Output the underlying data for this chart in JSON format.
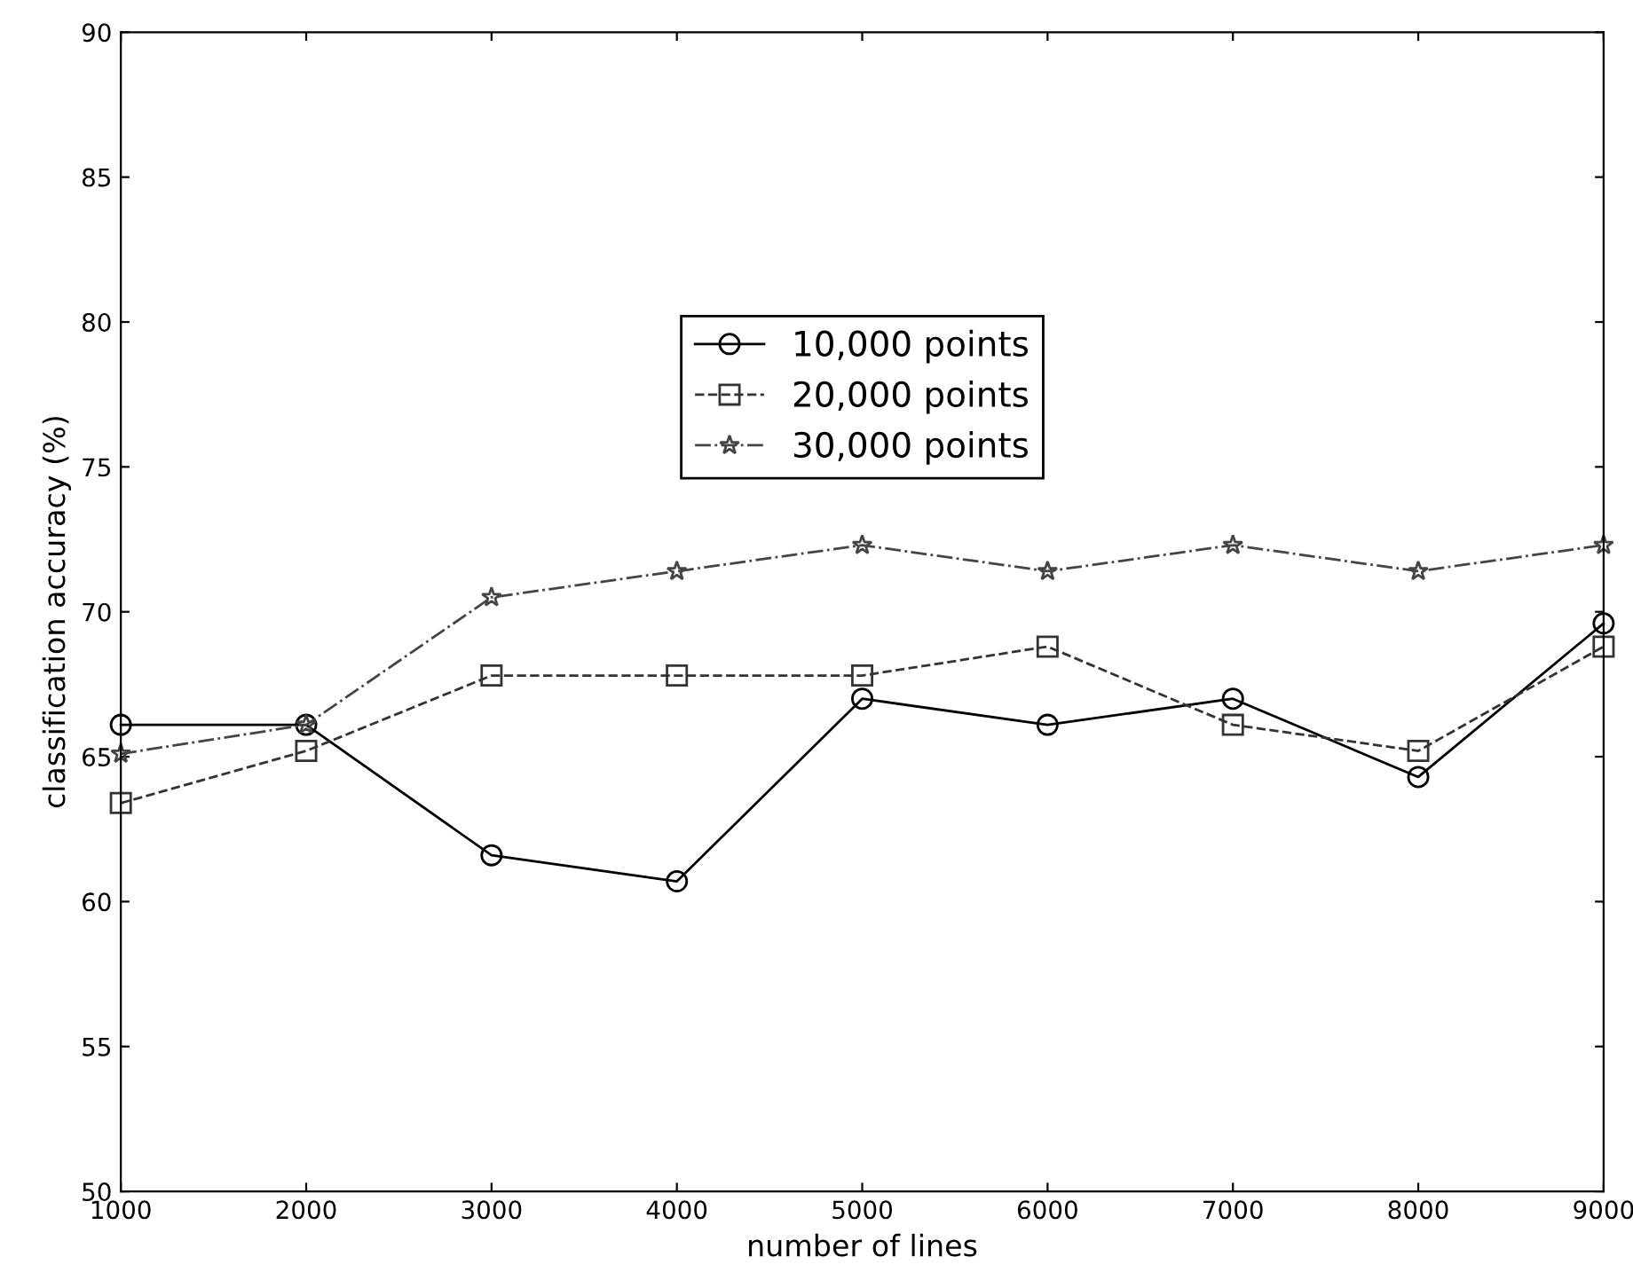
{
  "chart_data": {
    "type": "line",
    "xlabel": "number of lines",
    "ylabel": "classification accuracy (%)",
    "x": [
      1000,
      2000,
      3000,
      4000,
      5000,
      6000,
      7000,
      8000,
      9000
    ],
    "series": [
      {
        "name": "10,000 points",
        "color": "#000000",
        "marker": "circle",
        "line_style": "solid",
        "values": [
          66.1,
          66.1,
          61.6,
          60.7,
          67.0,
          66.1,
          67.0,
          64.3,
          69.6
        ]
      },
      {
        "name": "20,000 points",
        "color": "#333333",
        "marker": "square",
        "line_style": "dashed",
        "values": [
          63.4,
          65.2,
          67.8,
          67.8,
          67.8,
          68.8,
          66.1,
          65.2,
          68.8
        ]
      },
      {
        "name": "30,000 points",
        "color": "#444444",
        "marker": "star",
        "line_style": "dashdot",
        "values": [
          65.1,
          66.1,
          70.5,
          71.4,
          72.3,
          71.4,
          72.3,
          71.4,
          72.3
        ]
      }
    ],
    "xlim": [
      1000,
      9000
    ],
    "ylim": [
      50,
      90
    ],
    "xticks": [
      1000,
      2000,
      3000,
      4000,
      5000,
      6000,
      7000,
      8000,
      9000
    ],
    "yticks": [
      50,
      55,
      60,
      65,
      70,
      75,
      80,
      85,
      90
    ],
    "grid": false,
    "legend": "top"
  }
}
